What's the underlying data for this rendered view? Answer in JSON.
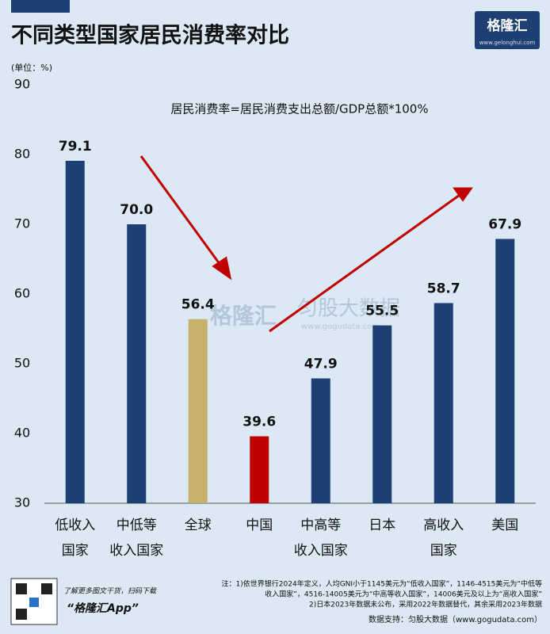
{
  "chart_data": {
    "type": "bar",
    "title": "不同类型国家居民消费率对比",
    "unit_label": "(单位：%)",
    "annotation": "居民消费率=居民消费支出总额/GDP总额*100%",
    "categories": [
      "低收入国家",
      "中低等收入国家",
      "全球",
      "中国",
      "中高等收入国家",
      "日本",
      "高收入国家",
      "美国"
    ],
    "values": [
      79.1,
      70.0,
      56.4,
      39.6,
      47.9,
      55.5,
      58.7,
      67.9
    ],
    "value_labels": [
      "79.1",
      "70.0",
      "56.4",
      "39.6",
      "47.9",
      "55.5",
      "58.7",
      "67.9"
    ],
    "colors": [
      "#1d3f72",
      "#1d3f72",
      "#c6b06a",
      "#c00000",
      "#1d3f72",
      "#1d3f72",
      "#1d3f72",
      "#1d3f72"
    ],
    "ylim": [
      30,
      90
    ],
    "yticks": [
      30,
      40,
      50,
      60,
      70,
      80,
      90
    ],
    "grid": false
  },
  "logo": {
    "name": "格隆汇",
    "url": "www.gelonghui.com"
  },
  "watermark": {
    "brand": "格隆汇",
    "data": "匀股大数据",
    "url": "www.gogudata.com"
  },
  "footer": {
    "promo": "了解更多图文干货，扫码下载",
    "app": "“格隆汇App”",
    "notes": [
      "注：1)依世界银行2024年定义，人均GNI小于1145美元为“低收入国家”，1146-4515美元为“中低等",
      "收入国家”，4516-14005美元为“中高等收入国家”，14006美元及以上为“高收入国家”",
      "2)日本2023年数据未公布，采用2022年数据替代，其余采用2023年数据"
    ],
    "source": "数据支持：匀股大数据（www.gogudata.com）"
  }
}
